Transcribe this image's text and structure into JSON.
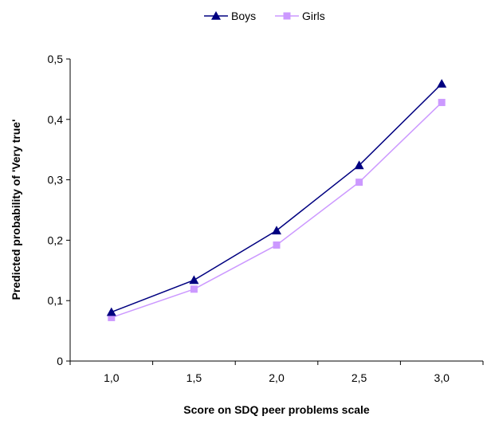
{
  "chart_data": {
    "type": "line",
    "title": "",
    "xlabel": "Score on SDQ peer problems scale",
    "ylabel": "Predicted probability of 'Very true'",
    "x": [
      1.0,
      1.5,
      2.0,
      2.5,
      3.0
    ],
    "x_tick_labels": [
      "1,0",
      "1,5",
      "2,0",
      "2,5",
      "3,0"
    ],
    "ylim": [
      0,
      0.5
    ],
    "y_ticks": [
      0,
      0.1,
      0.2,
      0.3,
      0.4,
      0.5
    ],
    "y_tick_labels": [
      "0",
      "0,1",
      "0,2",
      "0,3",
      "0,4",
      "0,5"
    ],
    "grid": false,
    "legend_position": "top-center",
    "series": [
      {
        "name": "Boys",
        "values": [
          0.081,
          0.134,
          0.216,
          0.324,
          0.459
        ],
        "color": "#000080",
        "marker": "triangle"
      },
      {
        "name": "Girls",
        "values": [
          0.072,
          0.119,
          0.192,
          0.296,
          0.428
        ],
        "color": "#cc99ff",
        "marker": "square"
      }
    ]
  }
}
